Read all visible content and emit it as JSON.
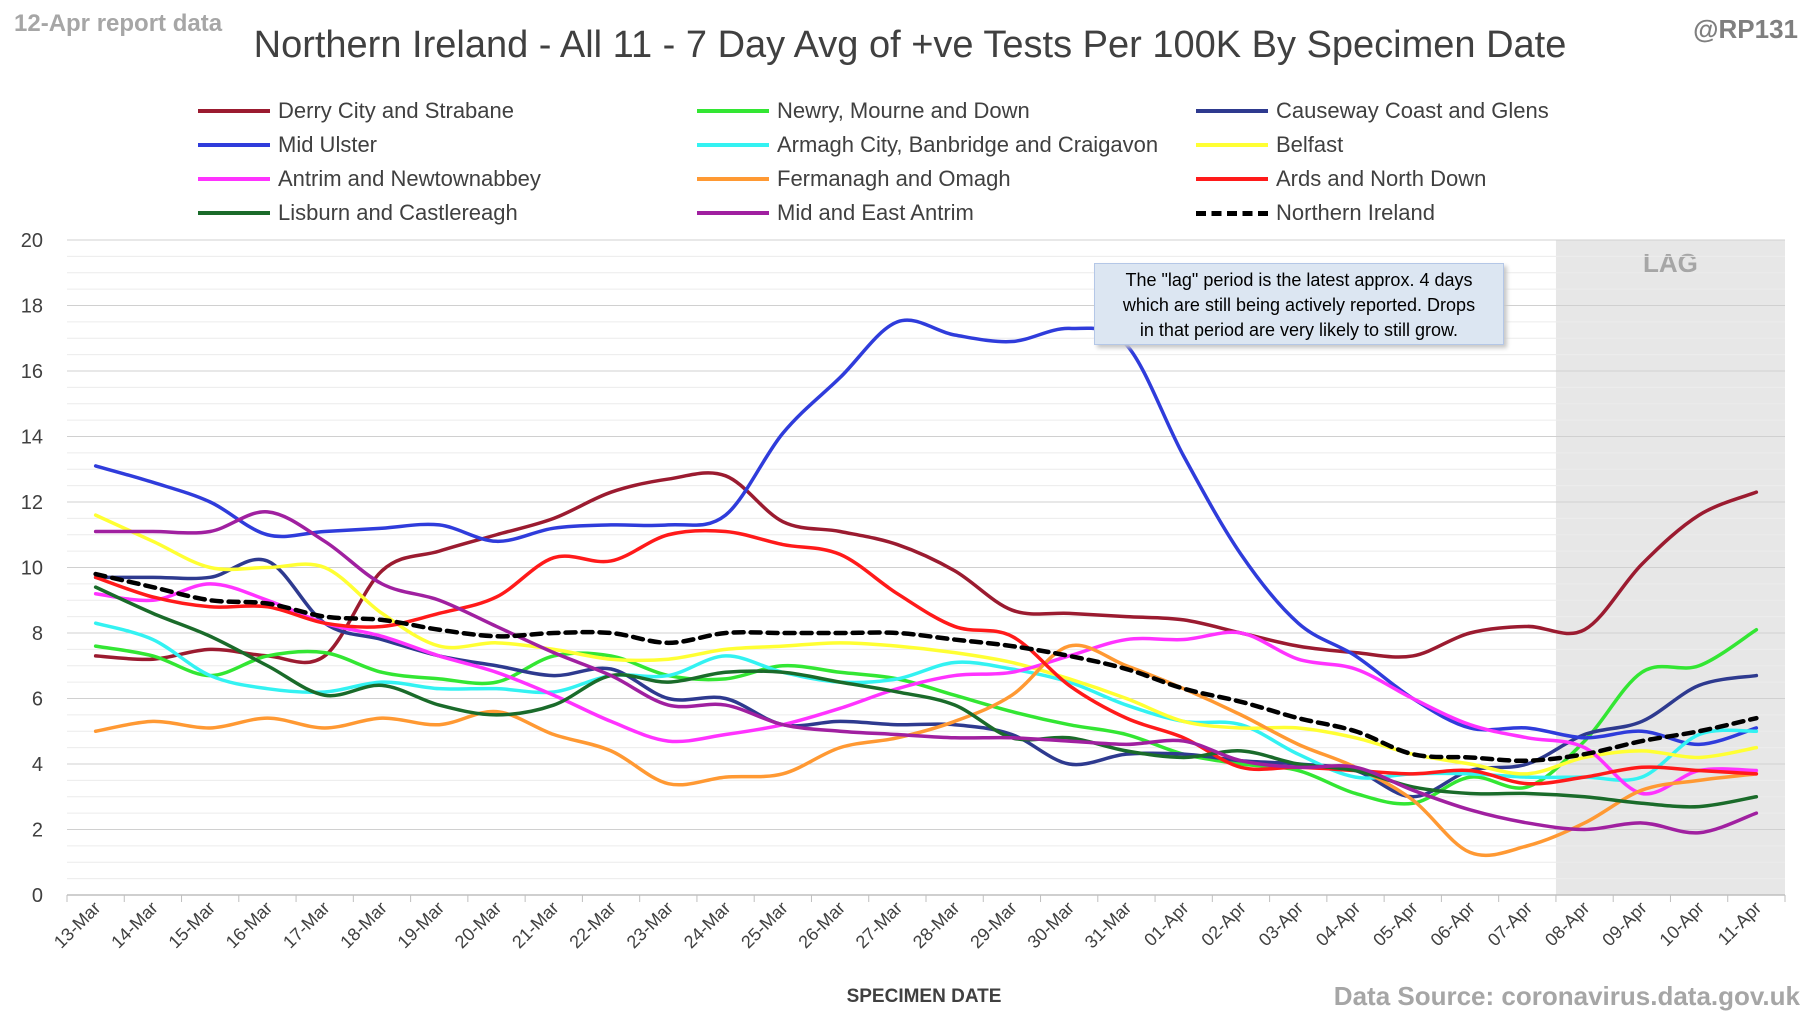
{
  "header": {
    "report_label": "12-Apr report data",
    "handle": "@RP131",
    "source": "Data Source: coronavirus.data.gov.uk"
  },
  "note": {
    "lines": [
      "The \"lag\" period is the latest approx. 4 days",
      "which are still being actively reported.  Drops",
      "in that period are very likely to still grow."
    ]
  },
  "chart_data": {
    "type": "line",
    "title": "Northern Ireland - All 11 - 7 Day Avg of +ve Tests Per 100K By Specimen Date",
    "xlabel": "SPECIMEN DATE",
    "ylabel": "",
    "ylim": [
      0,
      20
    ],
    "yticks": [
      0,
      2,
      4,
      6,
      8,
      10,
      12,
      14,
      16,
      18,
      20
    ],
    "grid": true,
    "legend_position": "top",
    "shaded_region": {
      "label": "LAG",
      "from": "08-Apr",
      "to": "11-Apr",
      "color": "#e7e7e7"
    },
    "categories": [
      "13-Mar",
      "14-Mar",
      "15-Mar",
      "16-Mar",
      "17-Mar",
      "18-Mar",
      "19-Mar",
      "20-Mar",
      "21-Mar",
      "22-Mar",
      "23-Mar",
      "24-Mar",
      "25-Mar",
      "26-Mar",
      "27-Mar",
      "28-Mar",
      "29-Mar",
      "30-Mar",
      "31-Mar",
      "01-Apr",
      "02-Apr",
      "03-Apr",
      "04-Apr",
      "05-Apr",
      "06-Apr",
      "07-Apr",
      "08-Apr",
      "09-Apr",
      "10-Apr",
      "11-Apr"
    ],
    "series": [
      {
        "name": "Derry City and Strabane",
        "color": "#9b1b30",
        "dash": false,
        "values": [
          7.3,
          7.2,
          7.5,
          7.3,
          7.3,
          9.9,
          10.5,
          11.0,
          11.5,
          12.3,
          12.7,
          12.8,
          11.4,
          11.1,
          10.7,
          9.9,
          8.7,
          8.6,
          8.5,
          8.4,
          8.0,
          7.6,
          7.4,
          7.3,
          8.0,
          8.2,
          8.1,
          10.1,
          11.6,
          12.3
        ]
      },
      {
        "name": "Newry, Mourne and Down",
        "color": "#33e633",
        "dash": false,
        "values": [
          7.6,
          7.3,
          6.7,
          7.3,
          7.4,
          6.8,
          6.6,
          6.5,
          7.3,
          7.3,
          6.7,
          6.6,
          7.0,
          6.8,
          6.6,
          6.1,
          5.6,
          5.2,
          4.9,
          4.3,
          4.0,
          3.8,
          3.1,
          2.8,
          3.6,
          3.3,
          4.7,
          6.8,
          7.0,
          8.1
        ]
      },
      {
        "name": "Causeway Coast and Glens",
        "color": "#2e3a8f",
        "dash": false,
        "values": [
          9.7,
          9.7,
          9.7,
          10.2,
          8.3,
          7.8,
          7.3,
          7.0,
          6.7,
          6.9,
          6.0,
          6.0,
          5.2,
          5.3,
          5.2,
          5.2,
          4.9,
          4.0,
          4.3,
          4.3,
          4.1,
          4.0,
          3.8,
          3.0,
          3.8,
          4.0,
          4.9,
          5.3,
          6.4,
          6.7
        ]
      },
      {
        "name": "Mid Ulster",
        "color": "#2f3cdb",
        "dash": false,
        "values": [
          13.1,
          12.6,
          12.0,
          11.0,
          11.1,
          11.2,
          11.3,
          10.8,
          11.2,
          11.3,
          11.3,
          11.6,
          14.1,
          15.8,
          17.5,
          17.1,
          16.9,
          17.3,
          16.8,
          13.4,
          10.4,
          8.3,
          7.3,
          6.0,
          5.1,
          5.1,
          4.8,
          5.0,
          4.6,
          5.1
        ]
      },
      {
        "name": "Armagh City, Banbridge and Craigavon",
        "color": "#33f2f2",
        "dash": false,
        "values": [
          8.3,
          7.8,
          6.7,
          6.3,
          6.2,
          6.5,
          6.3,
          6.3,
          6.2,
          6.7,
          6.7,
          7.3,
          6.8,
          6.5,
          6.6,
          7.1,
          6.9,
          6.5,
          5.8,
          5.3,
          5.2,
          4.3,
          3.6,
          3.7,
          3.7,
          3.6,
          3.6,
          3.6,
          4.9,
          5.0
        ]
      },
      {
        "name": "Belfast",
        "color": "#ffff33",
        "dash": false,
        "values": [
          11.6,
          10.8,
          10.0,
          10.0,
          10.0,
          8.6,
          7.6,
          7.7,
          7.5,
          7.2,
          7.2,
          7.5,
          7.6,
          7.7,
          7.6,
          7.4,
          7.1,
          6.6,
          6.0,
          5.3,
          5.1,
          5.1,
          4.8,
          4.3,
          4.0,
          3.7,
          4.2,
          4.4,
          4.2,
          4.5
        ]
      },
      {
        "name": "Antrim and Newtownabbey",
        "color": "#ff33ff",
        "dash": false,
        "values": [
          9.2,
          9.0,
          9.5,
          9.0,
          8.3,
          7.9,
          7.3,
          6.8,
          6.1,
          5.3,
          4.7,
          4.9,
          5.2,
          5.7,
          6.3,
          6.7,
          6.8,
          7.3,
          7.8,
          7.8,
          8.0,
          7.2,
          6.9,
          6.0,
          5.2,
          4.8,
          4.5,
          3.1,
          3.8,
          3.8
        ]
      },
      {
        "name": "Fermanagh and Omagh",
        "color": "#ff9933",
        "dash": false,
        "values": [
          5.0,
          5.3,
          5.1,
          5.4,
          5.1,
          5.4,
          5.2,
          5.6,
          4.9,
          4.4,
          3.4,
          3.6,
          3.7,
          4.5,
          4.8,
          5.3,
          6.1,
          7.6,
          7.0,
          6.3,
          5.5,
          4.6,
          3.9,
          2.9,
          1.3,
          1.5,
          2.2,
          3.2,
          3.5,
          3.7
        ]
      },
      {
        "name": "Ards and North Down",
        "color": "#ff1a1a",
        "dash": false,
        "values": [
          9.7,
          9.1,
          8.8,
          8.8,
          8.3,
          8.2,
          8.6,
          9.1,
          10.3,
          10.2,
          11.0,
          11.1,
          10.7,
          10.4,
          9.2,
          8.2,
          7.9,
          6.4,
          5.4,
          4.8,
          3.9,
          3.9,
          3.8,
          3.7,
          3.8,
          3.4,
          3.6,
          3.9,
          3.8,
          3.7
        ]
      },
      {
        "name": "Lisburn and Castlereagh",
        "color": "#1a6b2a",
        "dash": false,
        "values": [
          9.4,
          8.6,
          7.9,
          7.0,
          6.1,
          6.4,
          5.8,
          5.5,
          5.8,
          6.7,
          6.5,
          6.8,
          6.8,
          6.5,
          6.2,
          5.8,
          4.8,
          4.8,
          4.4,
          4.2,
          4.4,
          4.0,
          3.8,
          3.3,
          3.1,
          3.1,
          3.0,
          2.8,
          2.7,
          3.0
        ]
      },
      {
        "name": "Mid and East Antrim",
        "color": "#a020a0",
        "dash": false,
        "values": [
          11.1,
          11.1,
          11.1,
          11.7,
          10.8,
          9.5,
          9.0,
          8.2,
          7.4,
          6.7,
          5.8,
          5.8,
          5.2,
          5.0,
          4.9,
          4.8,
          4.8,
          4.7,
          4.6,
          4.7,
          4.1,
          3.9,
          3.9,
          3.2,
          2.6,
          2.2,
          2.0,
          2.2,
          1.9,
          2.5
        ]
      },
      {
        "name": "Northern Ireland",
        "color": "#000000",
        "dash": true,
        "values": [
          9.8,
          9.4,
          9.0,
          8.9,
          8.5,
          8.4,
          8.1,
          7.9,
          8.0,
          8.0,
          7.7,
          8.0,
          8.0,
          8.0,
          8.0,
          7.8,
          7.6,
          7.3,
          6.9,
          6.3,
          5.9,
          5.4,
          5.0,
          4.3,
          4.2,
          4.1,
          4.3,
          4.7,
          5.0,
          5.4
        ]
      }
    ]
  }
}
